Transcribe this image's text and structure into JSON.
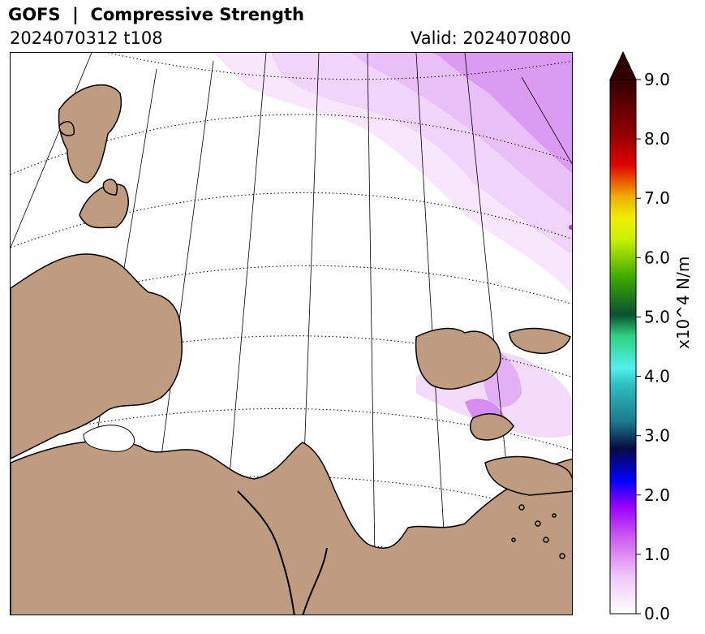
{
  "header": {
    "title": "GOFS  |  Compressive Strength",
    "init_label": "2024070312 t108",
    "valid_label": "Valid: 2024070800"
  },
  "colorbar": {
    "unit_label": "x10^4 N/m",
    "ticks": [
      "0.0",
      "1.0",
      "2.0",
      "3.0",
      "4.0",
      "5.0",
      "6.0",
      "7.0",
      "8.0",
      "9.0"
    ],
    "min": 0,
    "max": 9,
    "extend": "max"
  },
  "colors": {
    "land": "#bf9c7f",
    "coast": "#000000",
    "ice_light": "#f3d9fb",
    "ice_mid": "#e6b8f6",
    "ice_strong": "#d98ff2",
    "ocean": "#ffffff"
  }
}
